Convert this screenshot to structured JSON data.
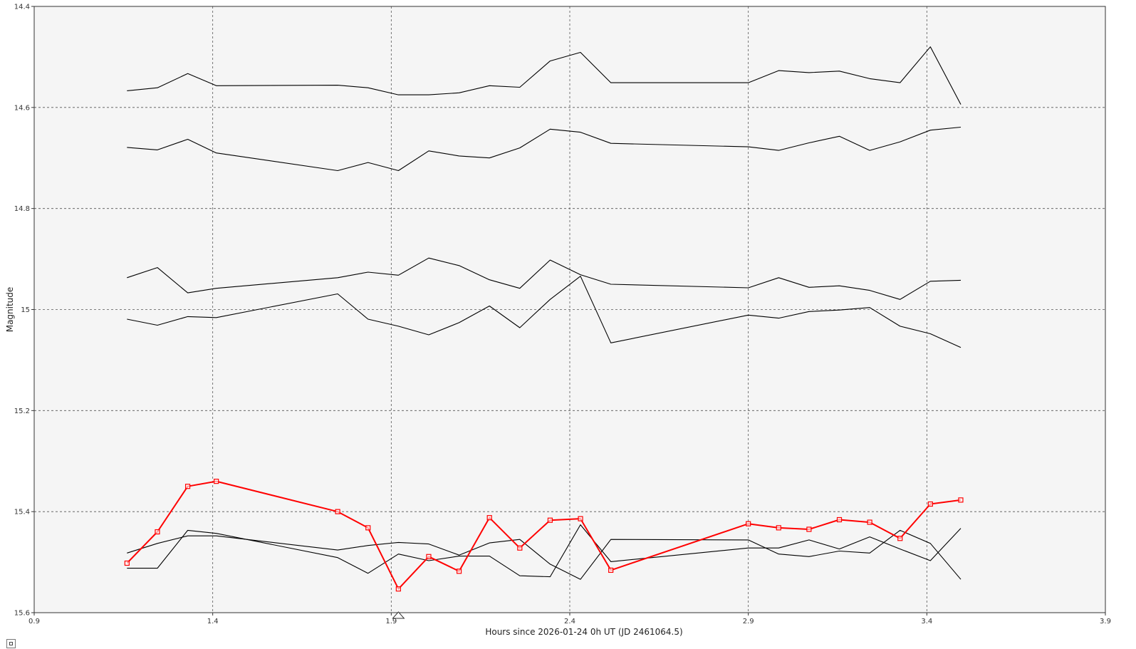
{
  "chart_data": {
    "type": "line",
    "xlabel": "Hours since 2026-01-24 0h UT (JD 2461064.5)",
    "ylabel": "Magnitude",
    "xlim": [
      0.9,
      3.9
    ],
    "ylim": [
      15.6,
      14.4
    ],
    "y_inverted": true,
    "grid": true,
    "grid_style": "dashed",
    "plot_background": "#f5f5f5",
    "x_ticks": [
      {
        "value": 0.9,
        "label": "0.9"
      },
      {
        "value": 1.4,
        "label": "1.4"
      },
      {
        "value": 1.9,
        "label": "1.9"
      },
      {
        "value": 2.4,
        "label": "2.4"
      },
      {
        "value": 2.9,
        "label": "2.9"
      },
      {
        "value": 3.4,
        "label": "3.4"
      },
      {
        "value": 3.9,
        "label": "3.9"
      }
    ],
    "y_ticks": [
      {
        "value": 14.4,
        "label": "14.4"
      },
      {
        "value": 14.6,
        "label": "14.6"
      },
      {
        "value": 14.8,
        "label": "14.8"
      },
      {
        "value": 15.0,
        "label": "15"
      },
      {
        "value": 15.2,
        "label": "15.2"
      },
      {
        "value": 15.4,
        "label": "15.4"
      },
      {
        "value": 15.6,
        "label": "15.6"
      }
    ],
    "x_marker": {
      "value": 1.92,
      "shape": "triangle"
    },
    "x": [
      1.16,
      1.245,
      1.33,
      1.41,
      1.75,
      1.835,
      1.92,
      2.005,
      2.09,
      2.175,
      2.26,
      2.345,
      2.43,
      2.515,
      2.9,
      2.985,
      3.07,
      3.155,
      3.24,
      3.325,
      3.41,
      3.495
    ],
    "series": [
      {
        "color": "#000000",
        "markers": false,
        "values": [
          14.567,
          14.561,
          14.533,
          14.557,
          14.556,
          14.561,
          14.575,
          14.575,
          14.571,
          14.557,
          14.56,
          14.508,
          14.491,
          14.551,
          14.551,
          14.527,
          14.531,
          14.528,
          14.543,
          14.551,
          14.48,
          14.594
        ]
      },
      {
        "color": "#000000",
        "markers": false,
        "values": [
          14.679,
          14.684,
          14.663,
          14.69,
          14.725,
          14.709,
          14.725,
          14.686,
          14.696,
          14.7,
          14.68,
          14.643,
          14.649,
          14.671,
          14.678,
          14.685,
          14.67,
          14.657,
          14.685,
          14.668,
          14.645,
          14.639
        ]
      },
      {
        "color": "#000000",
        "markers": false,
        "values": [
          14.937,
          14.917,
          14.967,
          14.958,
          14.937,
          14.926,
          14.932,
          14.898,
          14.913,
          14.941,
          14.958,
          14.902,
          14.931,
          14.95,
          14.957,
          14.937,
          14.956,
          14.953,
          14.962,
          14.98,
          14.944,
          14.942
        ]
      },
      {
        "color": "#000000",
        "markers": false,
        "values": [
          15.019,
          15.031,
          15.014,
          15.016,
          14.969,
          15.019,
          15.033,
          15.05,
          15.026,
          14.993,
          15.036,
          14.98,
          14.934,
          15.066,
          15.011,
          15.017,
          15.004,
          15.001,
          14.996,
          15.033,
          15.048,
          15.075
        ]
      },
      {
        "color": "#000000",
        "markers": false,
        "values": [
          15.512,
          15.512,
          15.437,
          15.443,
          15.491,
          15.522,
          15.484,
          15.497,
          15.488,
          15.488,
          15.527,
          15.529,
          15.426,
          15.499,
          15.472,
          15.472,
          15.456,
          15.474,
          15.45,
          15.474,
          15.497,
          15.433
        ]
      },
      {
        "color": "#000000",
        "markers": false,
        "values": [
          15.482,
          15.463,
          15.448,
          15.448,
          15.476,
          15.467,
          15.461,
          15.464,
          15.486,
          15.462,
          15.455,
          15.504,
          15.534,
          15.455,
          15.456,
          15.484,
          15.489,
          15.478,
          15.482,
          15.437,
          15.463,
          15.534
        ]
      },
      {
        "color": "#ff0000",
        "markers": true,
        "marker_shape": "square",
        "values": [
          15.502,
          15.44,
          15.35,
          15.34,
          15.4,
          15.432,
          15.553,
          15.489,
          15.518,
          15.412,
          15.472,
          15.417,
          15.414,
          15.516,
          15.424,
          15.432,
          15.435,
          15.416,
          15.421,
          15.453,
          15.385,
          15.377
        ]
      }
    ]
  }
}
